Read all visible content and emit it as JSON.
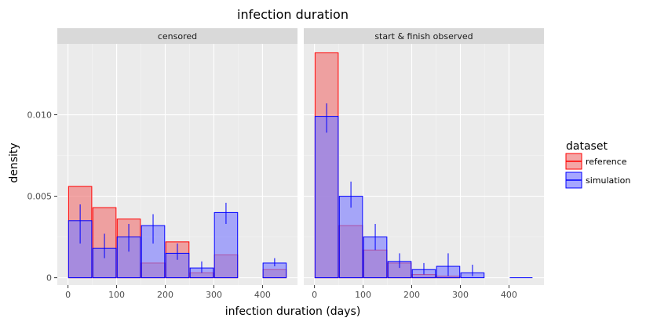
{
  "chart_data": {
    "type": "bar",
    "title": "infection duration",
    "xlabel": "infection duration (days)",
    "ylabel": "density",
    "xlim": [
      -22,
      472
    ],
    "ylim": [
      -0.00045,
      0.01435
    ],
    "xticks": [
      0,
      100,
      200,
      300,
      400
    ],
    "yticks": [
      0,
      0.005,
      0.01
    ],
    "ytick_labels": [
      "0",
      "0.005",
      "0.010"
    ],
    "bin_width": 50,
    "bin_centers": [
      25,
      75,
      125,
      175,
      225,
      275,
      325,
      375,
      425
    ],
    "legend": {
      "title": "dataset",
      "position": "right",
      "entries": [
        {
          "name": "reference",
          "fill": "#f08080",
          "stroke": "#ff0000"
        },
        {
          "name": "simulation",
          "fill": "#8080ff",
          "stroke": "#0000ff"
        }
      ]
    },
    "colors": {
      "reference_fill": "#f08080",
      "reference_stroke": "#ff0000",
      "simulation_fill": "#8080ff",
      "simulation_stroke": "#0000ff",
      "panel_bg": "#ebebeb",
      "strip_bg": "#d9d9d9",
      "grid_major": "#ffffff"
    },
    "panels": [
      {
        "label": "censored",
        "reference": [
          0.0056,
          0.0043,
          0.0036,
          0.0009,
          0.0022,
          0.0003,
          0.0014,
          0,
          0.0005
        ],
        "simulation": [
          0.0035,
          0.0018,
          0.0025,
          0.0032,
          0.0015,
          0.0006,
          0.004,
          0,
          0.0009
        ],
        "simulation_error": [
          [
            0.0021,
            0.0045
          ],
          [
            0.0012,
            0.0027
          ],
          [
            0.0016,
            0.0033
          ],
          [
            0.0021,
            0.0039
          ],
          [
            0.0011,
            0.0021
          ],
          [
            0.0003,
            0.001
          ],
          [
            0.0033,
            0.0046
          ],
          null,
          [
            0.0007,
            0.0012
          ]
        ]
      },
      {
        "label": "start & finish observed",
        "reference": [
          0.0138,
          0.0032,
          0.0017,
          0.0009,
          0.0002,
          0.0001,
          0,
          0,
          0
        ],
        "simulation": [
          0.0099,
          0.005,
          0.0025,
          0.001,
          0.0005,
          0.0007,
          0.0003,
          0,
          0
        ],
        "simulation_error": [
          [
            0.0089,
            0.0107
          ],
          [
            0.0043,
            0.0059
          ],
          [
            0.0017,
            0.0033
          ],
          [
            0.0006,
            0.0015
          ],
          [
            0.0002,
            0.0009
          ],
          [
            0.0001,
            0.0015
          ],
          [
            0.0001,
            0.0008
          ],
          null,
          [
            0,
            0
          ]
        ]
      }
    ]
  }
}
